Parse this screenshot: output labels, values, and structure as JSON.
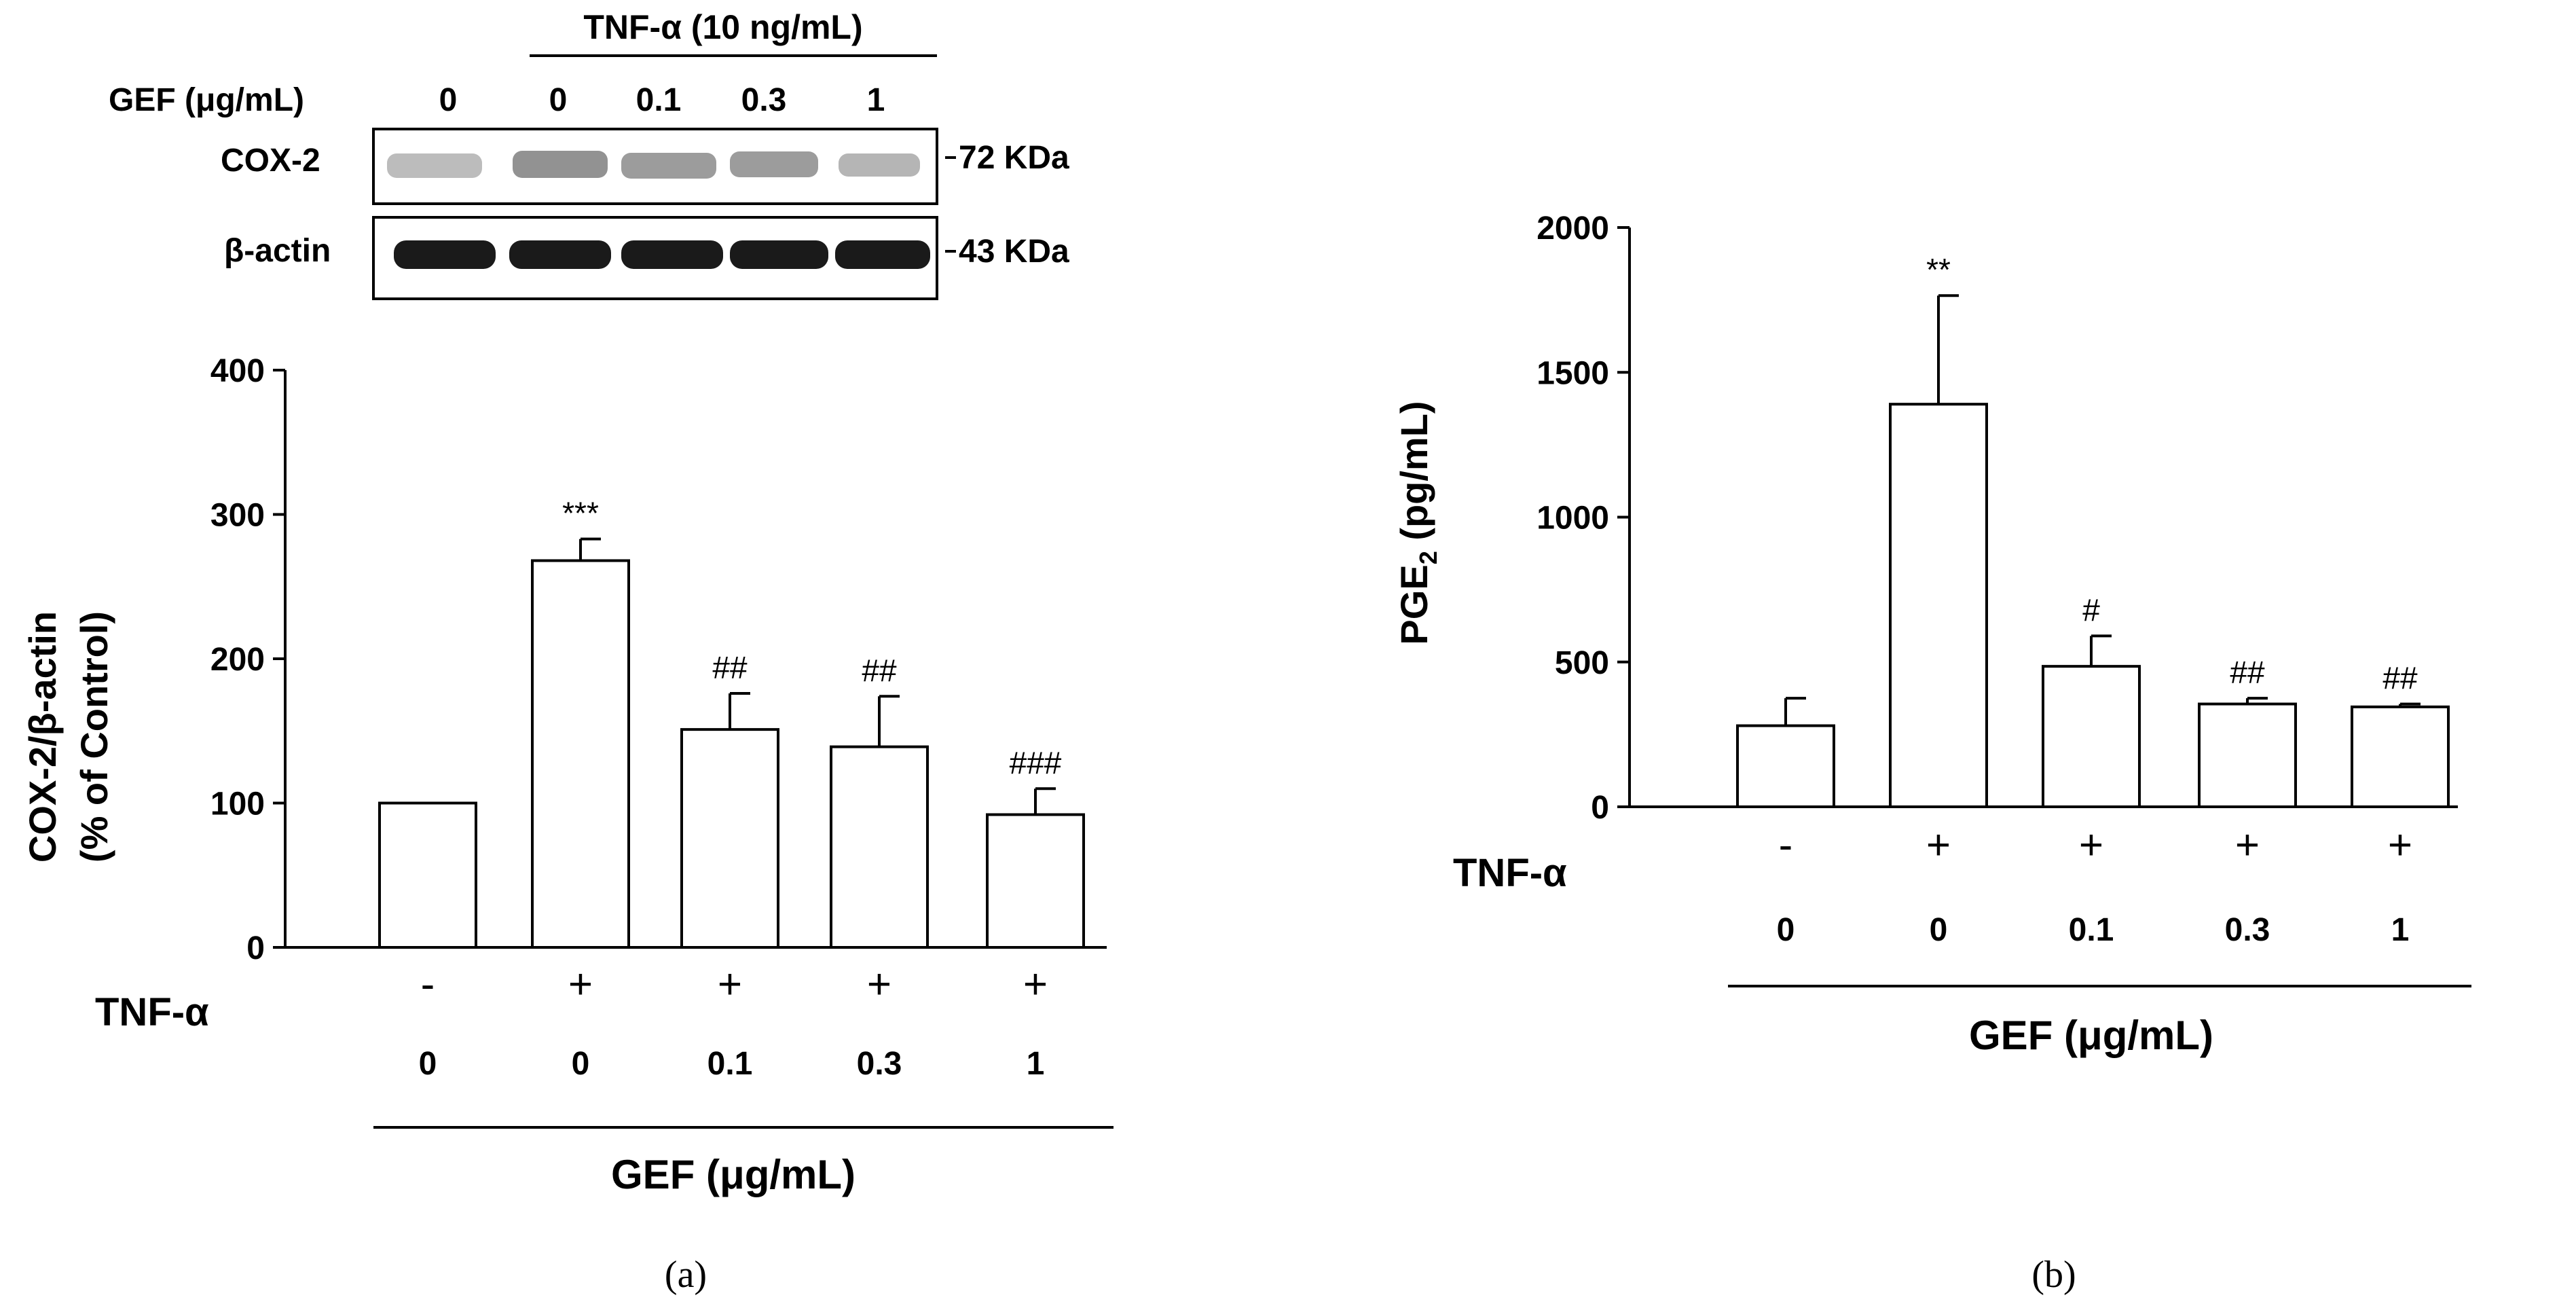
{
  "blot": {
    "treatment_label": "TNF-α (10 ng/mL)",
    "dose_label": "GEF (μg/mL)",
    "doses": [
      "0",
      "0",
      "0.1",
      "0.3",
      "1"
    ],
    "rows": [
      {
        "label": "COX-2",
        "size": "72 KDa"
      },
      {
        "label": "β-actin",
        "size": "43 KDa"
      }
    ]
  },
  "chart_data": [
    {
      "type": "bar",
      "panel_label": "(a)",
      "ylabel_line1": "COX-2/β-actin",
      "ylabel_line2": "(% of Control)",
      "ylim": [
        0,
        400
      ],
      "yticks": [
        0,
        100,
        200,
        300,
        400
      ],
      "tnf_label": "TNF-α",
      "tnf_signs": [
        "-",
        "+",
        "+",
        "+",
        "+"
      ],
      "categories": [
        "0",
        "0",
        "0.1",
        "0.3",
        "1"
      ],
      "xlabel": "GEF (μg/mL)",
      "values": [
        100,
        268,
        151,
        139,
        92
      ],
      "errors": [
        0,
        15,
        25,
        35,
        18
      ],
      "significance": [
        "",
        "***",
        "##",
        "##",
        "###"
      ]
    },
    {
      "type": "bar",
      "panel_label": "(b)",
      "ylabel": "PGE",
      "ylabel_sub": "2",
      "ylabel_unit": " (pg/mL)",
      "ylim": [
        0,
        2000
      ],
      "yticks": [
        0,
        500,
        1000,
        1500,
        2000
      ],
      "tnf_label": "TNF-α",
      "tnf_signs": [
        "-",
        "+",
        "+",
        "+",
        "+"
      ],
      "categories": [
        "0",
        "0",
        "0.1",
        "0.3",
        "1"
      ],
      "xlabel": "GEF (μg/mL)",
      "values": [
        280,
        1390,
        485,
        355,
        345
      ],
      "errors": [
        95,
        375,
        105,
        20,
        10
      ],
      "significance": [
        "",
        "**",
        "#",
        "##",
        "##"
      ]
    }
  ]
}
